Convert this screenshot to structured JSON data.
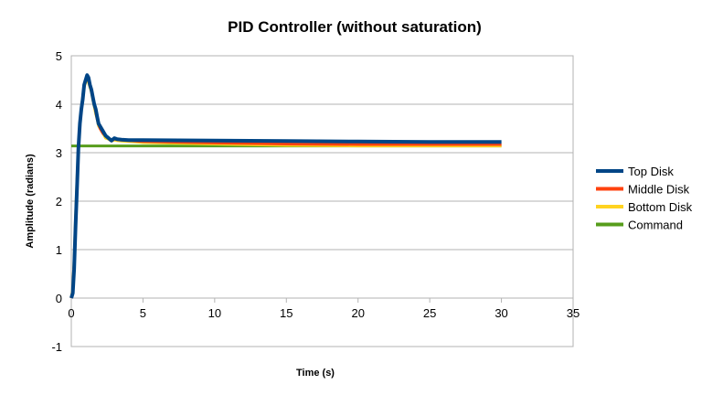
{
  "chart_data": {
    "type": "line",
    "title": "PID Controller (without saturation)",
    "xlabel": "Time (s)",
    "ylabel": "Amplitude (radians)",
    "xlim": [
      0,
      35
    ],
    "ylim": [
      -1,
      5
    ],
    "xticks": [
      0,
      5,
      10,
      15,
      20,
      25,
      30,
      35
    ],
    "yticks": [
      -1,
      0,
      1,
      2,
      3,
      4,
      5
    ],
    "grid": "horizontal",
    "legend_position": "right",
    "series": [
      {
        "name": "Top Disk",
        "color": "#004586",
        "x": [
          0,
          0.1,
          0.2,
          0.3,
          0.4,
          0.5,
          0.6,
          0.7,
          0.8,
          0.9,
          1.0,
          1.1,
          1.2,
          1.3,
          1.4,
          1.5,
          1.6,
          1.7,
          1.8,
          1.9,
          2.0,
          2.2,
          2.4,
          2.6,
          2.8,
          3.0,
          3.2,
          3.5,
          4.0,
          4.5,
          5,
          10,
          15,
          20,
          25,
          30
        ],
        "y": [
          0,
          0.1,
          0.6,
          1.5,
          2.3,
          3.1,
          3.6,
          3.9,
          4.1,
          4.4,
          4.5,
          4.6,
          4.55,
          4.4,
          4.3,
          4.15,
          4.0,
          3.9,
          3.75,
          3.6,
          3.55,
          3.45,
          3.35,
          3.3,
          3.25,
          3.3,
          3.28,
          3.27,
          3.26,
          3.26,
          3.26,
          3.25,
          3.24,
          3.23,
          3.22,
          3.22
        ]
      },
      {
        "name": "Middle Disk",
        "color": "#ff420e",
        "x": [
          0,
          0.1,
          0.2,
          0.3,
          0.4,
          0.5,
          0.6,
          0.7,
          0.8,
          0.9,
          1.0,
          1.1,
          1.2,
          1.3,
          1.4,
          1.5,
          1.6,
          1.7,
          1.8,
          1.9,
          2.0,
          2.2,
          2.4,
          2.6,
          2.8,
          3.0,
          3.2,
          3.5,
          4.0,
          4.5,
          5,
          10,
          15,
          20,
          25,
          30
        ],
        "y": [
          0,
          0.15,
          0.7,
          1.6,
          2.4,
          3.1,
          3.6,
          3.9,
          4.15,
          4.4,
          4.5,
          4.55,
          4.5,
          4.4,
          4.3,
          4.15,
          4.0,
          3.85,
          3.7,
          3.6,
          3.5,
          3.4,
          3.35,
          3.3,
          3.25,
          3.28,
          3.27,
          3.26,
          3.25,
          3.24,
          3.23,
          3.2,
          3.18,
          3.17,
          3.17,
          3.17
        ]
      },
      {
        "name": "Bottom Disk",
        "color": "#ffd320",
        "x": [
          0,
          0.1,
          0.2,
          0.3,
          0.4,
          0.5,
          0.6,
          0.7,
          0.8,
          0.9,
          1.0,
          1.1,
          1.2,
          1.3,
          1.4,
          1.5,
          1.6,
          1.7,
          1.8,
          1.9,
          2.0,
          2.2,
          2.4,
          2.6,
          2.8,
          3.0,
          3.2,
          3.5,
          4.0,
          4.5,
          5,
          10,
          15,
          20,
          25,
          30
        ],
        "y": [
          0,
          0.2,
          0.8,
          1.7,
          2.5,
          3.1,
          3.6,
          3.9,
          4.1,
          4.35,
          4.45,
          4.5,
          4.45,
          4.35,
          4.25,
          4.1,
          3.95,
          3.8,
          3.7,
          3.55,
          3.5,
          3.4,
          3.3,
          3.28,
          3.24,
          3.26,
          3.25,
          3.24,
          3.23,
          3.22,
          3.21,
          3.18,
          3.15,
          3.14,
          3.14,
          3.14
        ]
      },
      {
        "name": "Command",
        "color": "#579d1c",
        "x": [
          0,
          30
        ],
        "y": [
          3.14,
          3.14
        ]
      }
    ]
  }
}
